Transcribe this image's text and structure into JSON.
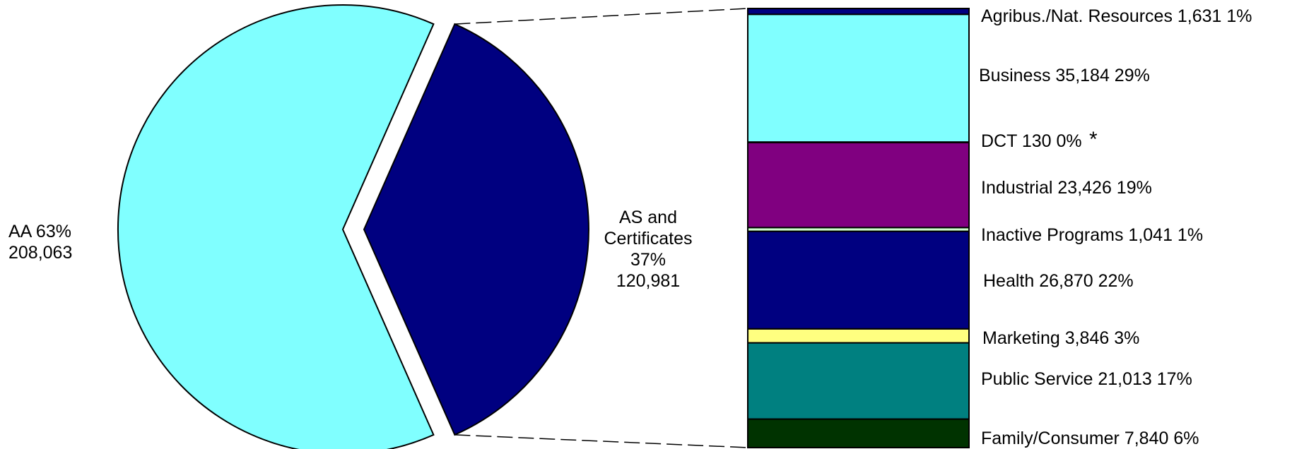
{
  "chart_data": {
    "type": "pie",
    "pie": {
      "slices": [
        {
          "name": "AA",
          "label_line1": "AA 63%",
          "label_line2": "208,063",
          "value": 208063,
          "percent": 63,
          "color": "#80FFFF"
        },
        {
          "name": "AS and Certificates",
          "label_lines": [
            "AS and",
            "Certificates",
            "37%",
            "120,981"
          ],
          "value": 120981,
          "percent": 37,
          "color": "#000080",
          "exploded": true
        }
      ]
    },
    "breakdown": {
      "type": "stacked-bar",
      "of": "AS and Certificates",
      "items": [
        {
          "label": "Agribus./Nat. Resources 1,631  1%",
          "value": 1631,
          "percent": 1,
          "color": "#000080"
        },
        {
          "label": "Business 35,184  29%",
          "value": 35184,
          "percent": 29,
          "color": "#80FFFF"
        },
        {
          "label": "DCT 130 0%",
          "note": "*",
          "value": 130,
          "percent": 0,
          "color": "#000080"
        },
        {
          "label": "Industrial  23,426 19%",
          "value": 23426,
          "percent": 19,
          "color": "#800080"
        },
        {
          "label": "Inactive Programs 1,041  1%",
          "value": 1041,
          "percent": 1,
          "color": "#CCFFCC"
        },
        {
          "label": "Health 26,870  22%",
          "value": 26870,
          "percent": 22,
          "color": "#000080"
        },
        {
          "label": "Marketing 3,846  3%",
          "value": 3846,
          "percent": 3,
          "color": "#FFFF80"
        },
        {
          "label": "Public Service 21,013  17%",
          "value": 21013,
          "percent": 17,
          "color": "#008080"
        },
        {
          "label": "Family/Consumer 7,840  6%",
          "value": 7840,
          "percent": 6,
          "color": "#003300"
        }
      ]
    }
  }
}
